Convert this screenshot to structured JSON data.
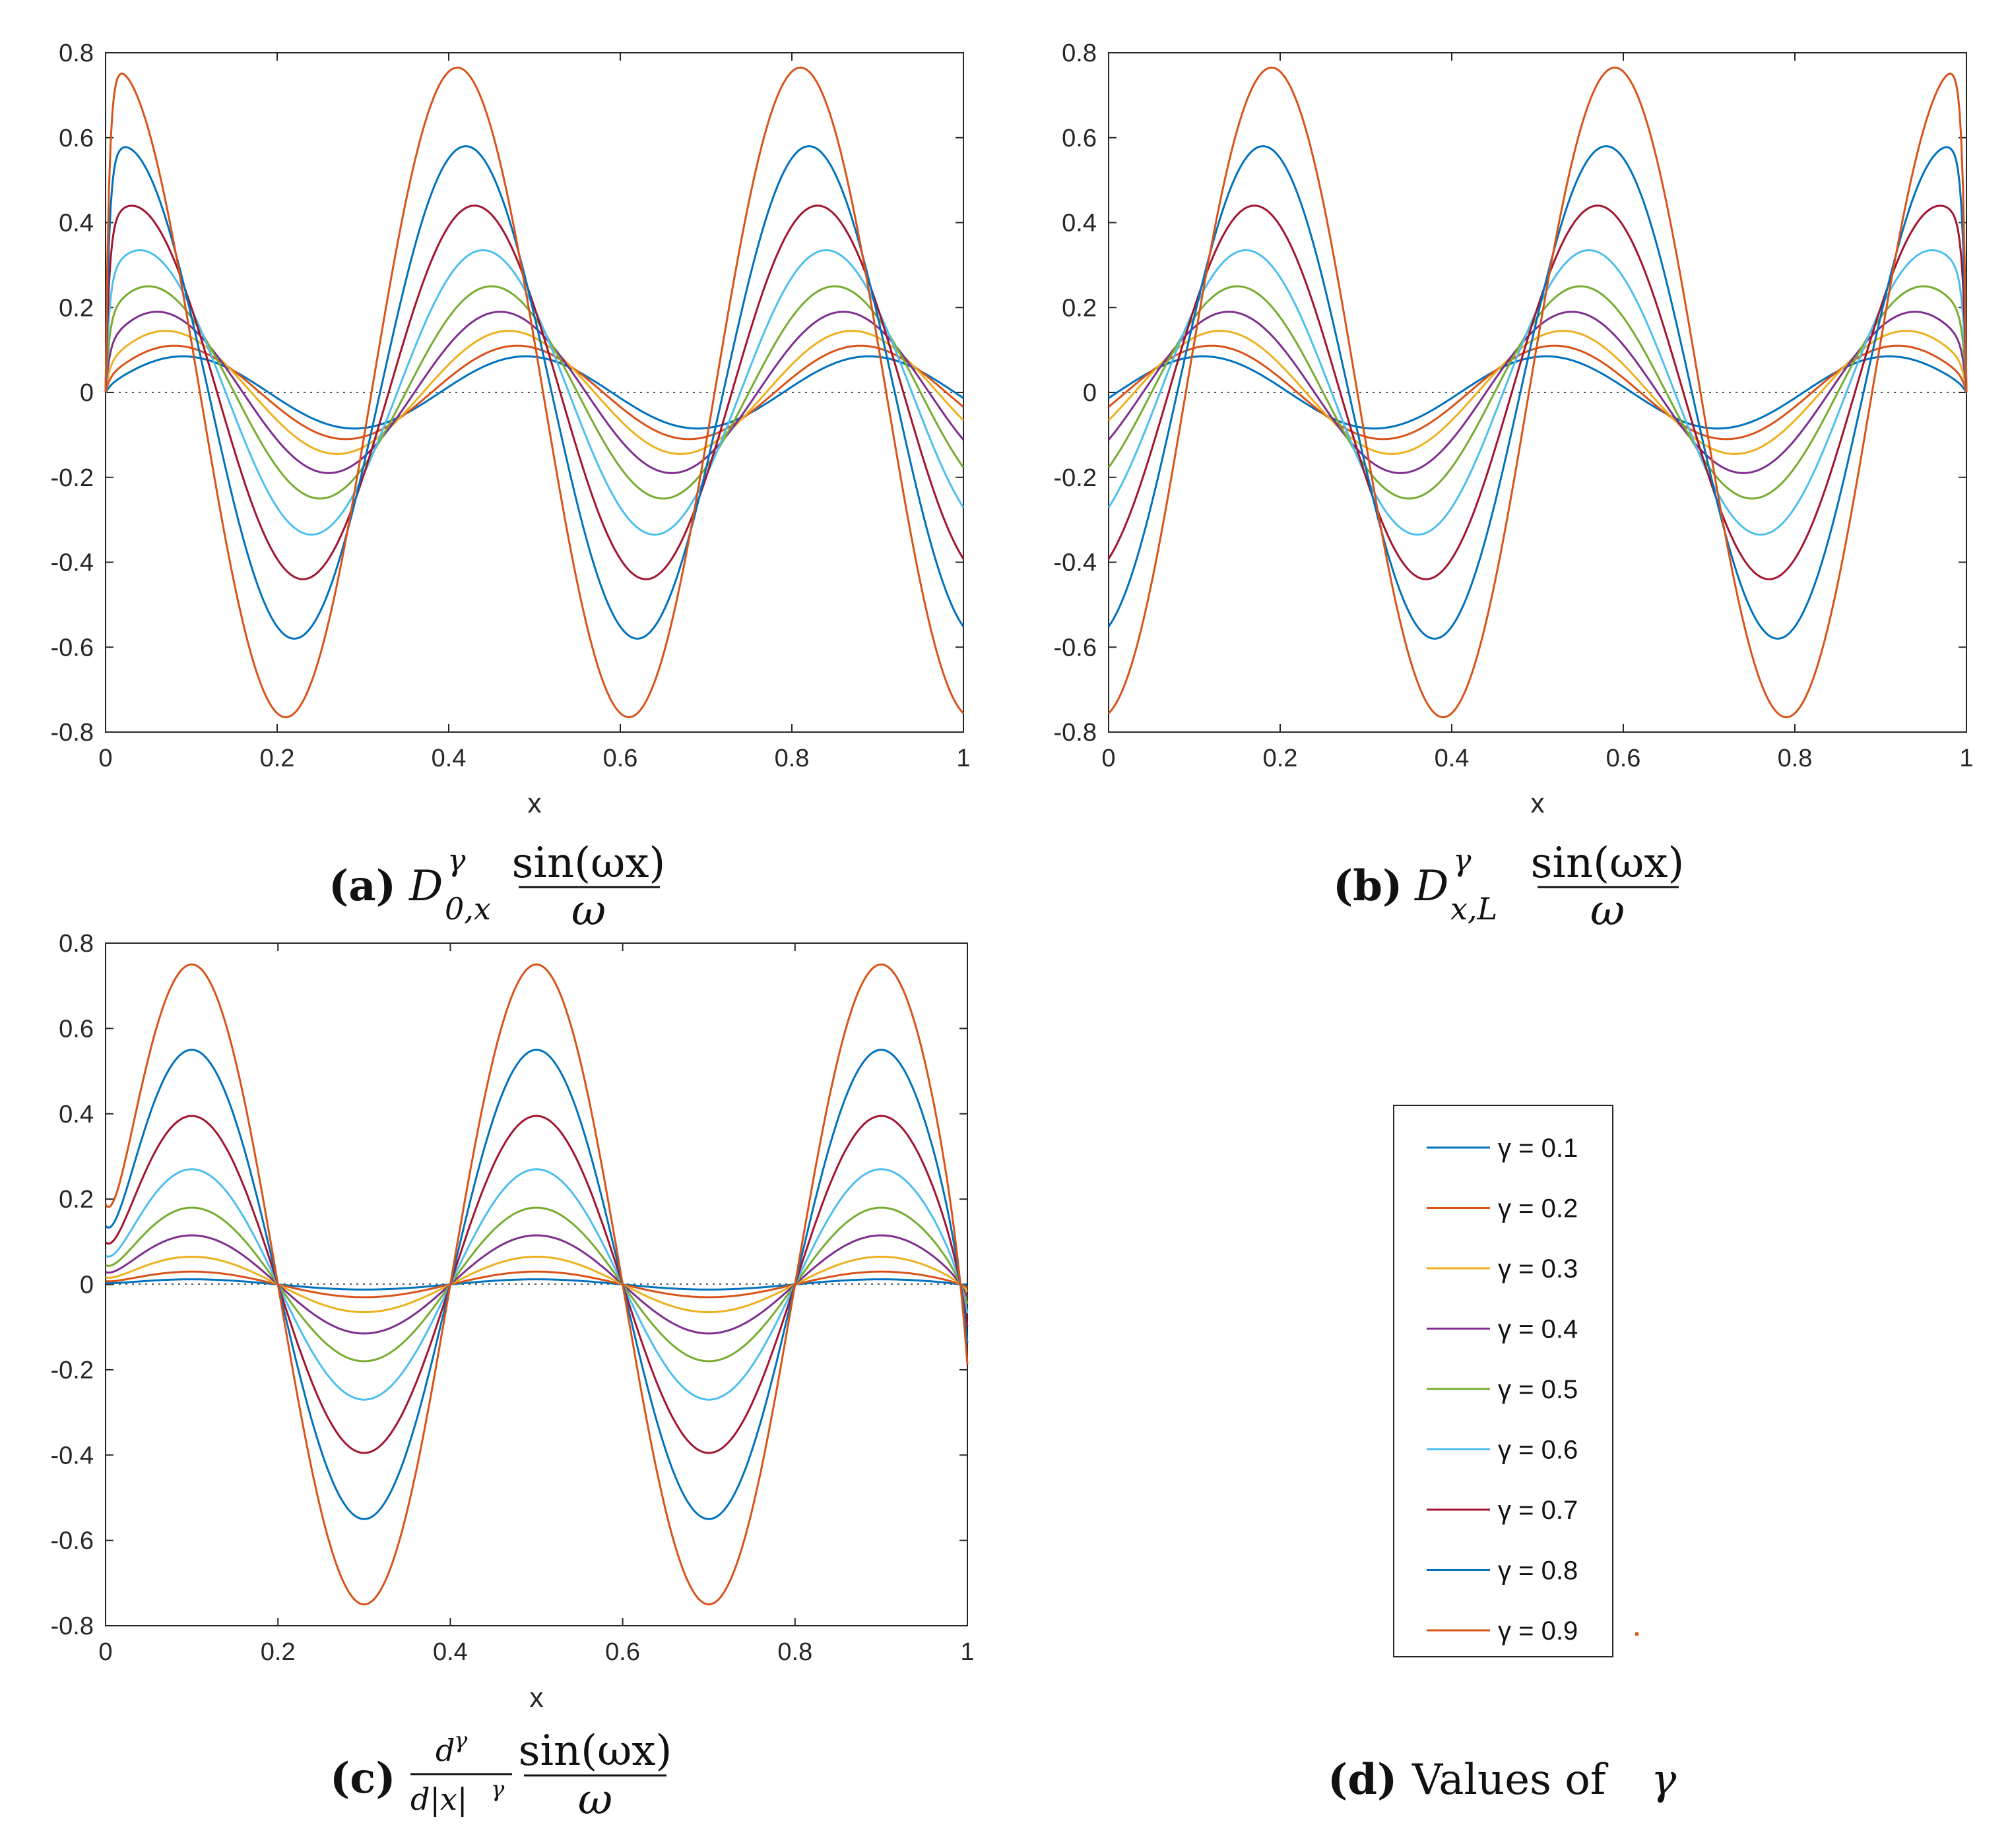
{
  "series_colors": [
    "#0072BD",
    "#D95319",
    "#EDB120",
    "#7E2F8E",
    "#77AC30",
    "#4DBEEE",
    "#A2142F",
    "#0072BD",
    "#D95319"
  ],
  "legend": {
    "entries": [
      "γ = 0.1",
      "γ = 0.2",
      "γ = 0.3",
      "γ = 0.4",
      "γ = 0.5",
      "γ = 0.6",
      "γ = 0.7",
      "γ = 0.8",
      "γ = 0.9"
    ]
  },
  "chart_data": [
    {
      "type": "line",
      "panel": "a",
      "caption": {
        "label": "(a)",
        "operator": "D",
        "sup": "γ",
        "sub": "0,x",
        "numerator": "sin(ωx)",
        "denominator": "ω"
      },
      "xlabel": "x",
      "xlim": [
        0,
        1
      ],
      "ylim": [
        -0.8,
        0.8
      ],
      "xticks": [
        "0",
        "0.2",
        "0.4",
        "0.6",
        "0.8",
        "1"
      ],
      "yticks": [
        "0.8",
        "0.6",
        "0.4",
        "0.2",
        "0",
        "-0.2",
        "-0.4",
        "-0.6",
        "-0.8"
      ],
      "series": [
        {
          "name": "γ = 0.1",
          "amplitude": 0.085
        },
        {
          "name": "γ = 0.2",
          "amplitude": 0.11
        },
        {
          "name": "γ = 0.3",
          "amplitude": 0.145
        },
        {
          "name": "γ = 0.4",
          "amplitude": 0.19
        },
        {
          "name": "γ = 0.5",
          "amplitude": 0.25
        },
        {
          "name": "γ = 0.6",
          "amplitude": 0.335
        },
        {
          "name": "γ = 0.7",
          "amplitude": 0.44
        },
        {
          "name": "γ = 0.8",
          "amplitude": 0.58
        },
        {
          "name": "γ = 0.9",
          "amplitude": 0.765
        }
      ]
    },
    {
      "type": "line",
      "panel": "b",
      "caption": {
        "label": "(b)",
        "operator": "D",
        "sup": "γ",
        "sub": "x,L",
        "numerator": "sin(ωx)",
        "denominator": "ω"
      },
      "xlabel": "x",
      "xlim": [
        0,
        1
      ],
      "ylim": [
        -0.8,
        0.8
      ],
      "xticks": [
        "0",
        "0.2",
        "0.4",
        "0.6",
        "0.8",
        "1"
      ],
      "yticks": [
        "0.8",
        "0.6",
        "0.4",
        "0.2",
        "0",
        "-0.2",
        "-0.4",
        "-0.6",
        "-0.8"
      ],
      "series": [
        {
          "name": "γ = 0.1",
          "amplitude": 0.085
        },
        {
          "name": "γ = 0.2",
          "amplitude": 0.11
        },
        {
          "name": "γ = 0.3",
          "amplitude": 0.145
        },
        {
          "name": "γ = 0.4",
          "amplitude": 0.19
        },
        {
          "name": "γ = 0.5",
          "amplitude": 0.25
        },
        {
          "name": "γ = 0.6",
          "amplitude": 0.335
        },
        {
          "name": "γ = 0.7",
          "amplitude": 0.44
        },
        {
          "name": "γ = 0.8",
          "amplitude": 0.58
        },
        {
          "name": "γ = 0.9",
          "amplitude": 0.765
        }
      ]
    },
    {
      "type": "line",
      "panel": "c",
      "caption": {
        "label": "(c)",
        "num_d": "d",
        "num_sup": "γ",
        "den_d": "d|x|",
        "den_sup": "γ",
        "numerator": "sin(ωx)",
        "denominator": "ω"
      },
      "xlabel": "x",
      "xlim": [
        0,
        1
      ],
      "ylim": [
        -0.8,
        0.8
      ],
      "xticks": [
        "0",
        "0.2",
        "0.4",
        "0.6",
        "0.8",
        "1"
      ],
      "yticks": [
        "0.8",
        "0.6",
        "0.4",
        "0.2",
        "0",
        "-0.2",
        "-0.4",
        "-0.6",
        "-0.8"
      ],
      "series": [
        {
          "name": "γ = 0.1",
          "amplitude": 0.012
        },
        {
          "name": "γ = 0.2",
          "amplitude": 0.03
        },
        {
          "name": "γ = 0.3",
          "amplitude": 0.065
        },
        {
          "name": "γ = 0.4",
          "amplitude": 0.115
        },
        {
          "name": "γ = 0.5",
          "amplitude": 0.18
        },
        {
          "name": "γ = 0.6",
          "amplitude": 0.27
        },
        {
          "name": "γ = 0.7",
          "amplitude": 0.395
        },
        {
          "name": "γ = 0.8",
          "amplitude": 0.55
        },
        {
          "name": "γ = 0.9",
          "amplitude": 0.75
        }
      ]
    }
  ],
  "panel_d": {
    "label": "(d)",
    "text": "Values of",
    "symbol": "γ"
  }
}
